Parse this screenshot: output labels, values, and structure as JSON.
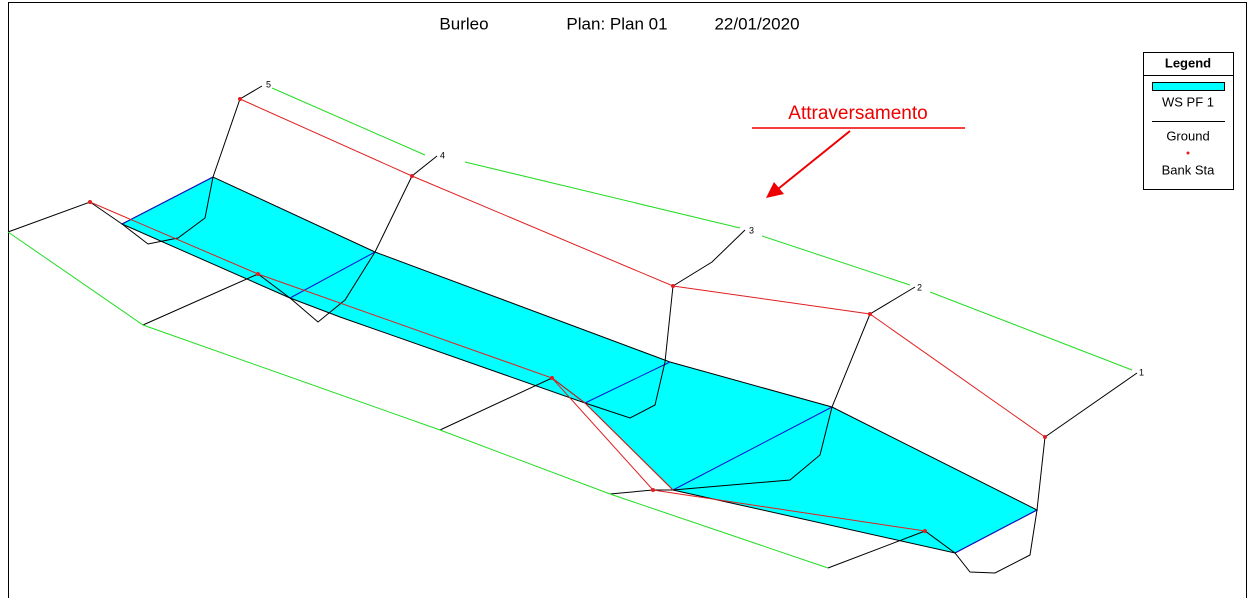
{
  "header": {
    "project": "Burleo",
    "plan": "Plan: Plan 01",
    "date": "22/01/2020"
  },
  "legend": {
    "title": "Legend",
    "items": [
      "WS PF 1",
      "Ground",
      "Bank Sta"
    ]
  },
  "stations": [
    "5",
    "4",
    "3",
    "2",
    "1"
  ],
  "annotation": "Attraversamento"
}
